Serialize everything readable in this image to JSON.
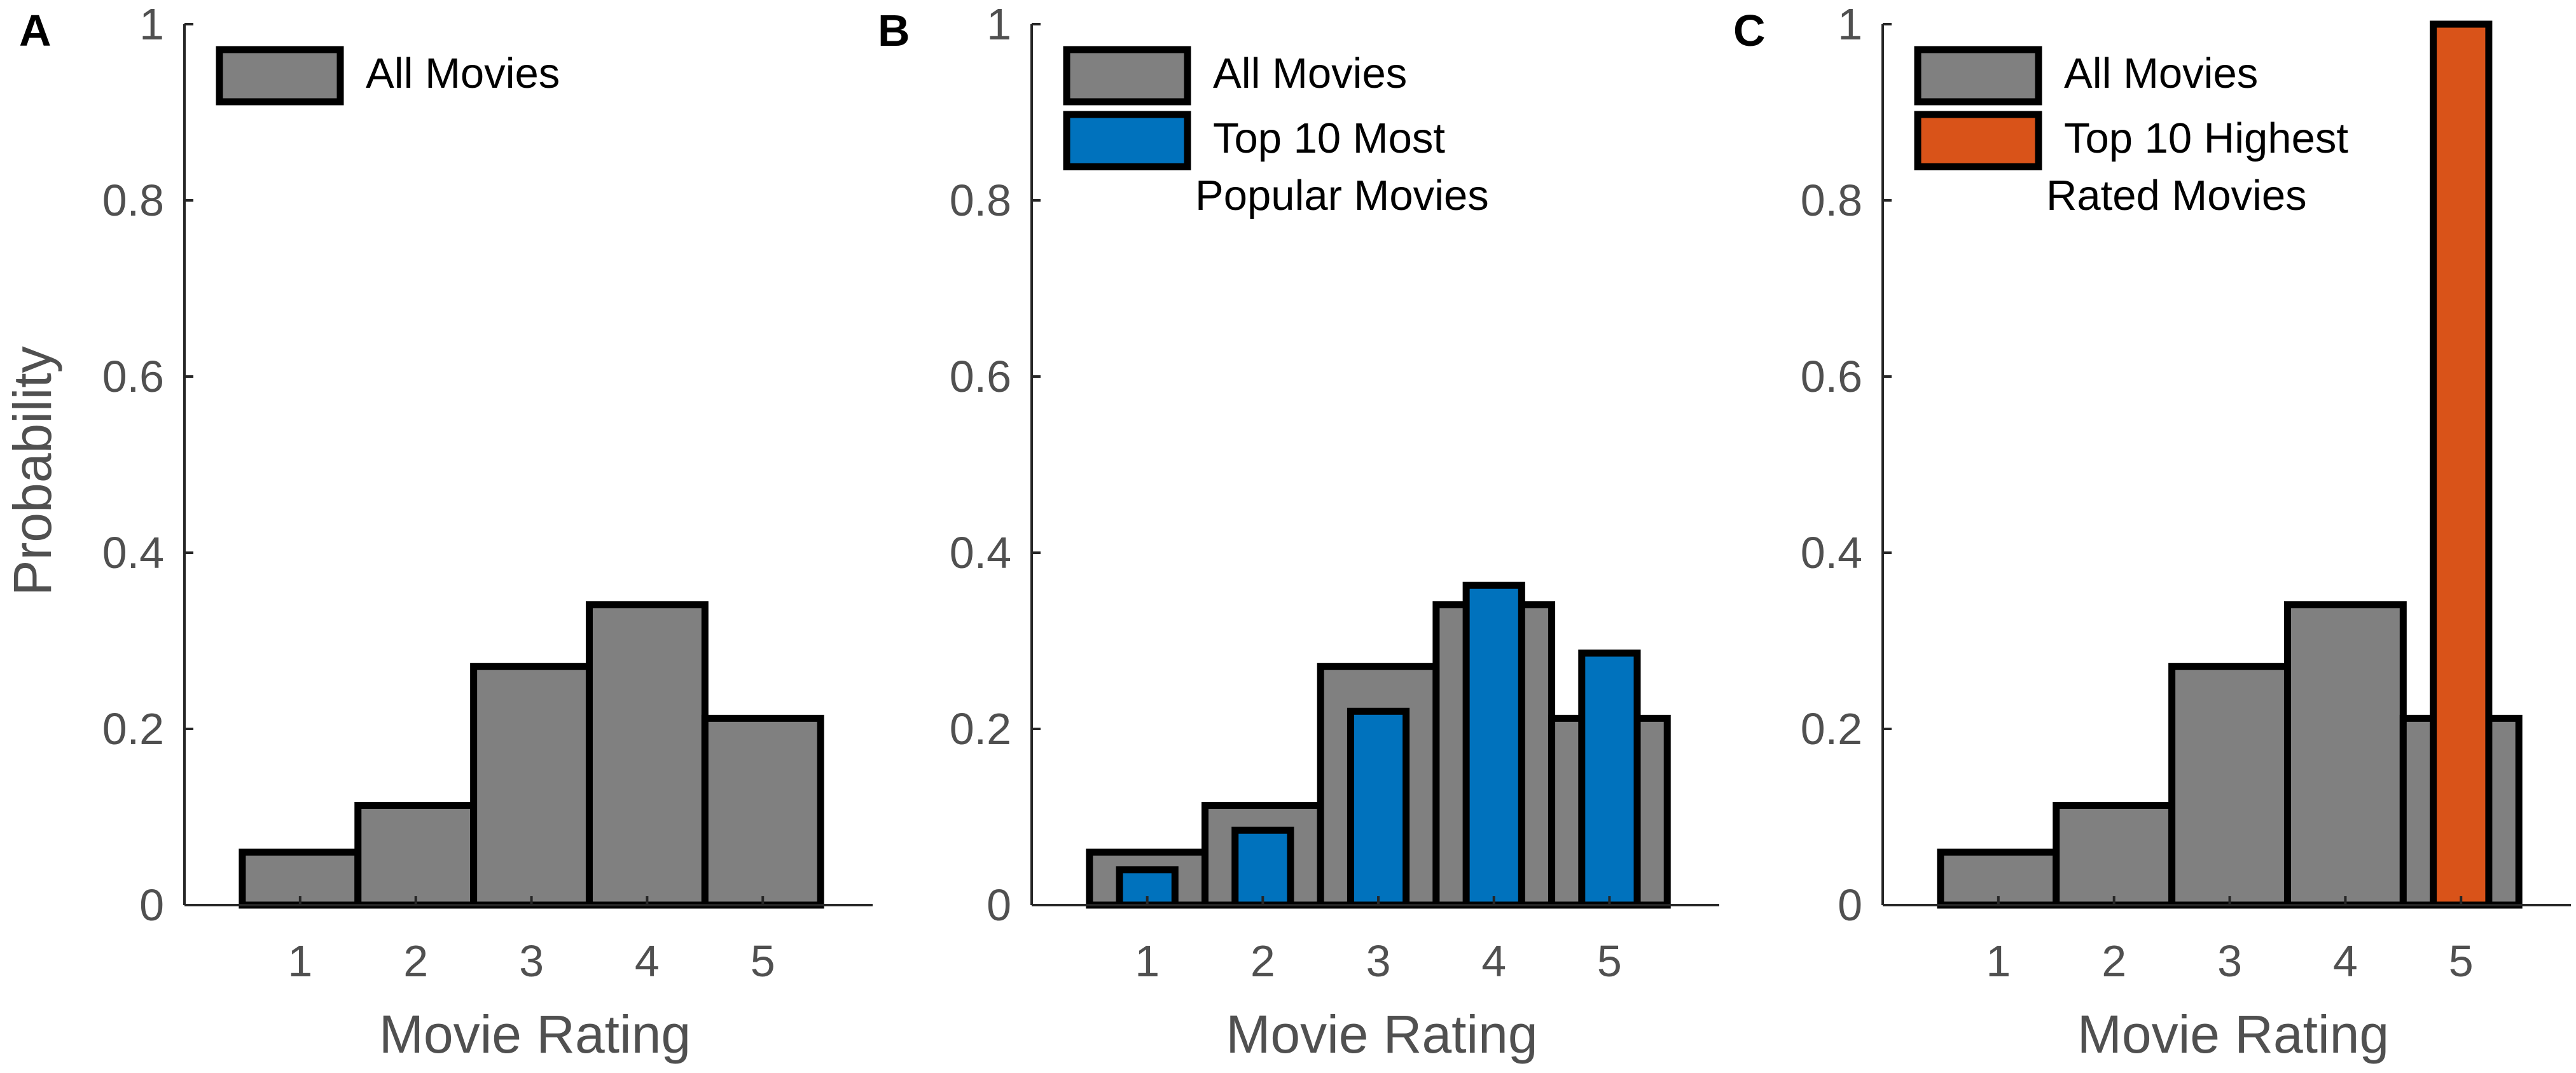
{
  "figure": {
    "panel_letters": [
      "A",
      "B",
      "C"
    ],
    "colors": {
      "all_movies": "#808080",
      "top10_popular": "#0072BD",
      "top10_rated": "#D95319",
      "axis": "#262626",
      "bar_edge": "#000000"
    }
  },
  "chart_data": [
    {
      "type": "bar",
      "panel": "A",
      "categories": [
        "1",
        "2",
        "3",
        "4",
        "5"
      ],
      "series": [
        {
          "name": "All Movies",
          "values": [
            0.06,
            0.113,
            0.271,
            0.341,
            0.212
          ]
        }
      ],
      "legend": [
        [
          "All Movies"
        ]
      ],
      "legend_position": "top-left",
      "xlabel": "Movie Rating",
      "ylabel": "Probability",
      "ylim": [
        0,
        1
      ],
      "yticks": [
        "0",
        "0.2",
        "0.4",
        "0.6",
        "0.8",
        "1"
      ],
      "grid": false
    },
    {
      "type": "bar",
      "panel": "B",
      "categories": [
        "1",
        "2",
        "3",
        "4",
        "5"
      ],
      "series": [
        {
          "name": "All Movies",
          "values": [
            0.06,
            0.113,
            0.271,
            0.341,
            0.212
          ]
        },
        {
          "name": "Top 10 Most Popular Movies",
          "values": [
            0.04,
            0.085,
            0.22,
            0.363,
            0.286
          ]
        }
      ],
      "legend": [
        [
          "All Movies"
        ],
        [
          "Top 10 Most",
          "Popular Movies"
        ]
      ],
      "legend_position": "top-left",
      "xlabel": "Movie Rating",
      "ylabel": "",
      "ylim": [
        0,
        1
      ],
      "yticks": [
        "0",
        "0.2",
        "0.4",
        "0.6",
        "0.8",
        "1"
      ],
      "grid": false
    },
    {
      "type": "bar",
      "panel": "C",
      "categories": [
        "1",
        "2",
        "3",
        "4",
        "5"
      ],
      "series": [
        {
          "name": "All Movies",
          "values": [
            0.06,
            0.113,
            0.271,
            0.341,
            0.212
          ]
        },
        {
          "name": "Top 10 Highest Rated Movies",
          "values": [
            0,
            0,
            0,
            0,
            1.0
          ]
        }
      ],
      "legend": [
        [
          "All Movies"
        ],
        [
          "Top 10 Highest",
          "Rated Movies"
        ]
      ],
      "legend_position": "top-left",
      "xlabel": "Movie Rating",
      "ylabel": "",
      "ylim": [
        0,
        1
      ],
      "yticks": [
        "0",
        "0.2",
        "0.4",
        "0.6",
        "0.8",
        "1"
      ],
      "grid": false
    }
  ]
}
